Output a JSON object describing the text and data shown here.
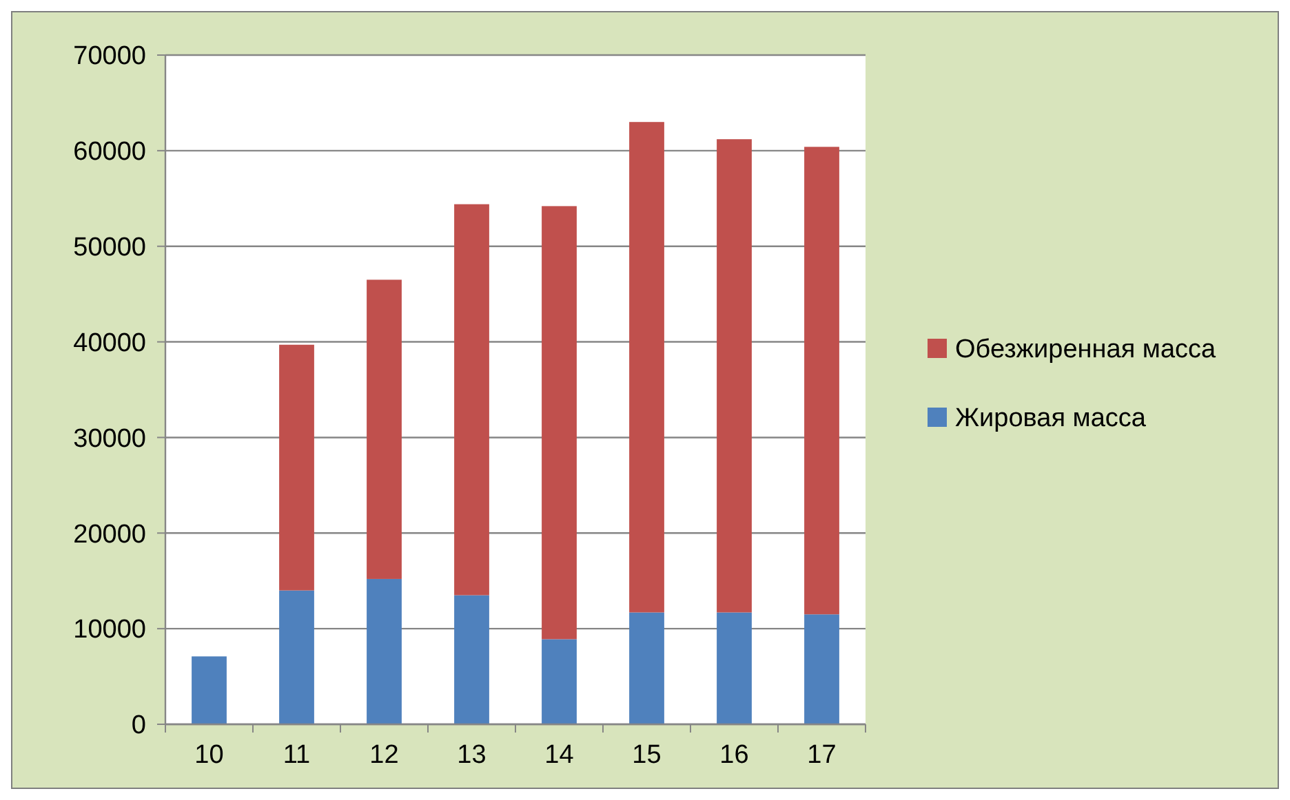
{
  "chart_data": {
    "type": "bar",
    "stacked": true,
    "categories": [
      "10",
      "11",
      "12",
      "13",
      "14",
      "15",
      "16",
      "17"
    ],
    "series": [
      {
        "name": "Жировая масса",
        "color": "#4f81bd",
        "values": [
          7100,
          14000,
          15200,
          13500,
          8900,
          11700,
          11700,
          11500
        ]
      },
      {
        "name": "Обезжиренная масса",
        "color": "#c0504d",
        "values": [
          null,
          25700,
          31300,
          40900,
          45300,
          51300,
          49500,
          48900
        ]
      }
    ],
    "ylim": [
      0,
      70000
    ],
    "yticks": [
      0,
      10000,
      20000,
      30000,
      40000,
      50000,
      60000,
      70000
    ],
    "grid": "y",
    "legend": "right"
  }
}
